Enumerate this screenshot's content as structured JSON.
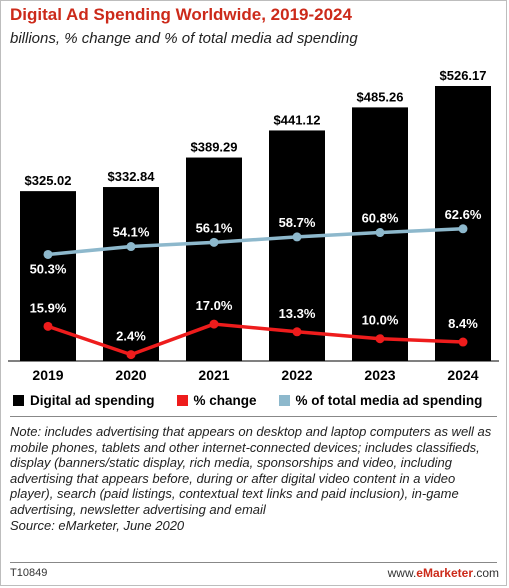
{
  "header": {
    "title": "Digital Ad Spending Worldwide, 2019-2024",
    "subtitle": "billions, % change and % of total media ad spending"
  },
  "chart_data": {
    "type": "bar",
    "categories": [
      "2019",
      "2020",
      "2021",
      "2022",
      "2023",
      "2024"
    ],
    "series": [
      {
        "name": "Digital ad spending",
        "type": "bar",
        "color": "#000000",
        "values": [
          325.02,
          332.84,
          389.29,
          441.12,
          485.26,
          526.17
        ],
        "labels": [
          "$325.02",
          "$332.84",
          "$389.29",
          "$441.12",
          "$485.26",
          "$526.17"
        ]
      },
      {
        "name": "% change",
        "type": "line",
        "color": "#ee1c1c",
        "values": [
          15.9,
          2.4,
          17.0,
          13.3,
          10.0,
          8.4
        ],
        "labels": [
          "15.9%",
          "2.4%",
          "17.0%",
          "13.3%",
          "10.0%",
          "8.4%"
        ]
      },
      {
        "name": "% of total media ad spending",
        "type": "line",
        "color": "#8db8cc",
        "values": [
          50.3,
          54.1,
          56.1,
          58.7,
          60.8,
          62.6
        ],
        "labels": [
          "50.3%",
          "54.1%",
          "56.1%",
          "58.7%",
          "60.8%",
          "62.6%"
        ]
      }
    ],
    "legend_position": "bottom",
    "grid": false
  },
  "notes": {
    "note": "Note: includes advertising that appears on desktop and laptop computers as well as mobile phones, tablets and other internet-connected devices; includes classifieds, display (banners/static display, rich media, sponsorships and video, including advertising that appears before, during or after digital video content in a video player), search (paid listings, contextual text links and paid inclusion), in-game advertising, newsletter advertising and email",
    "source": "Source: eMarketer, June 2020"
  },
  "footer": {
    "chart_id": "T10849",
    "brand_prefix": "www.",
    "brand_name": "eMarketer",
    "brand_suffix": ".com"
  }
}
